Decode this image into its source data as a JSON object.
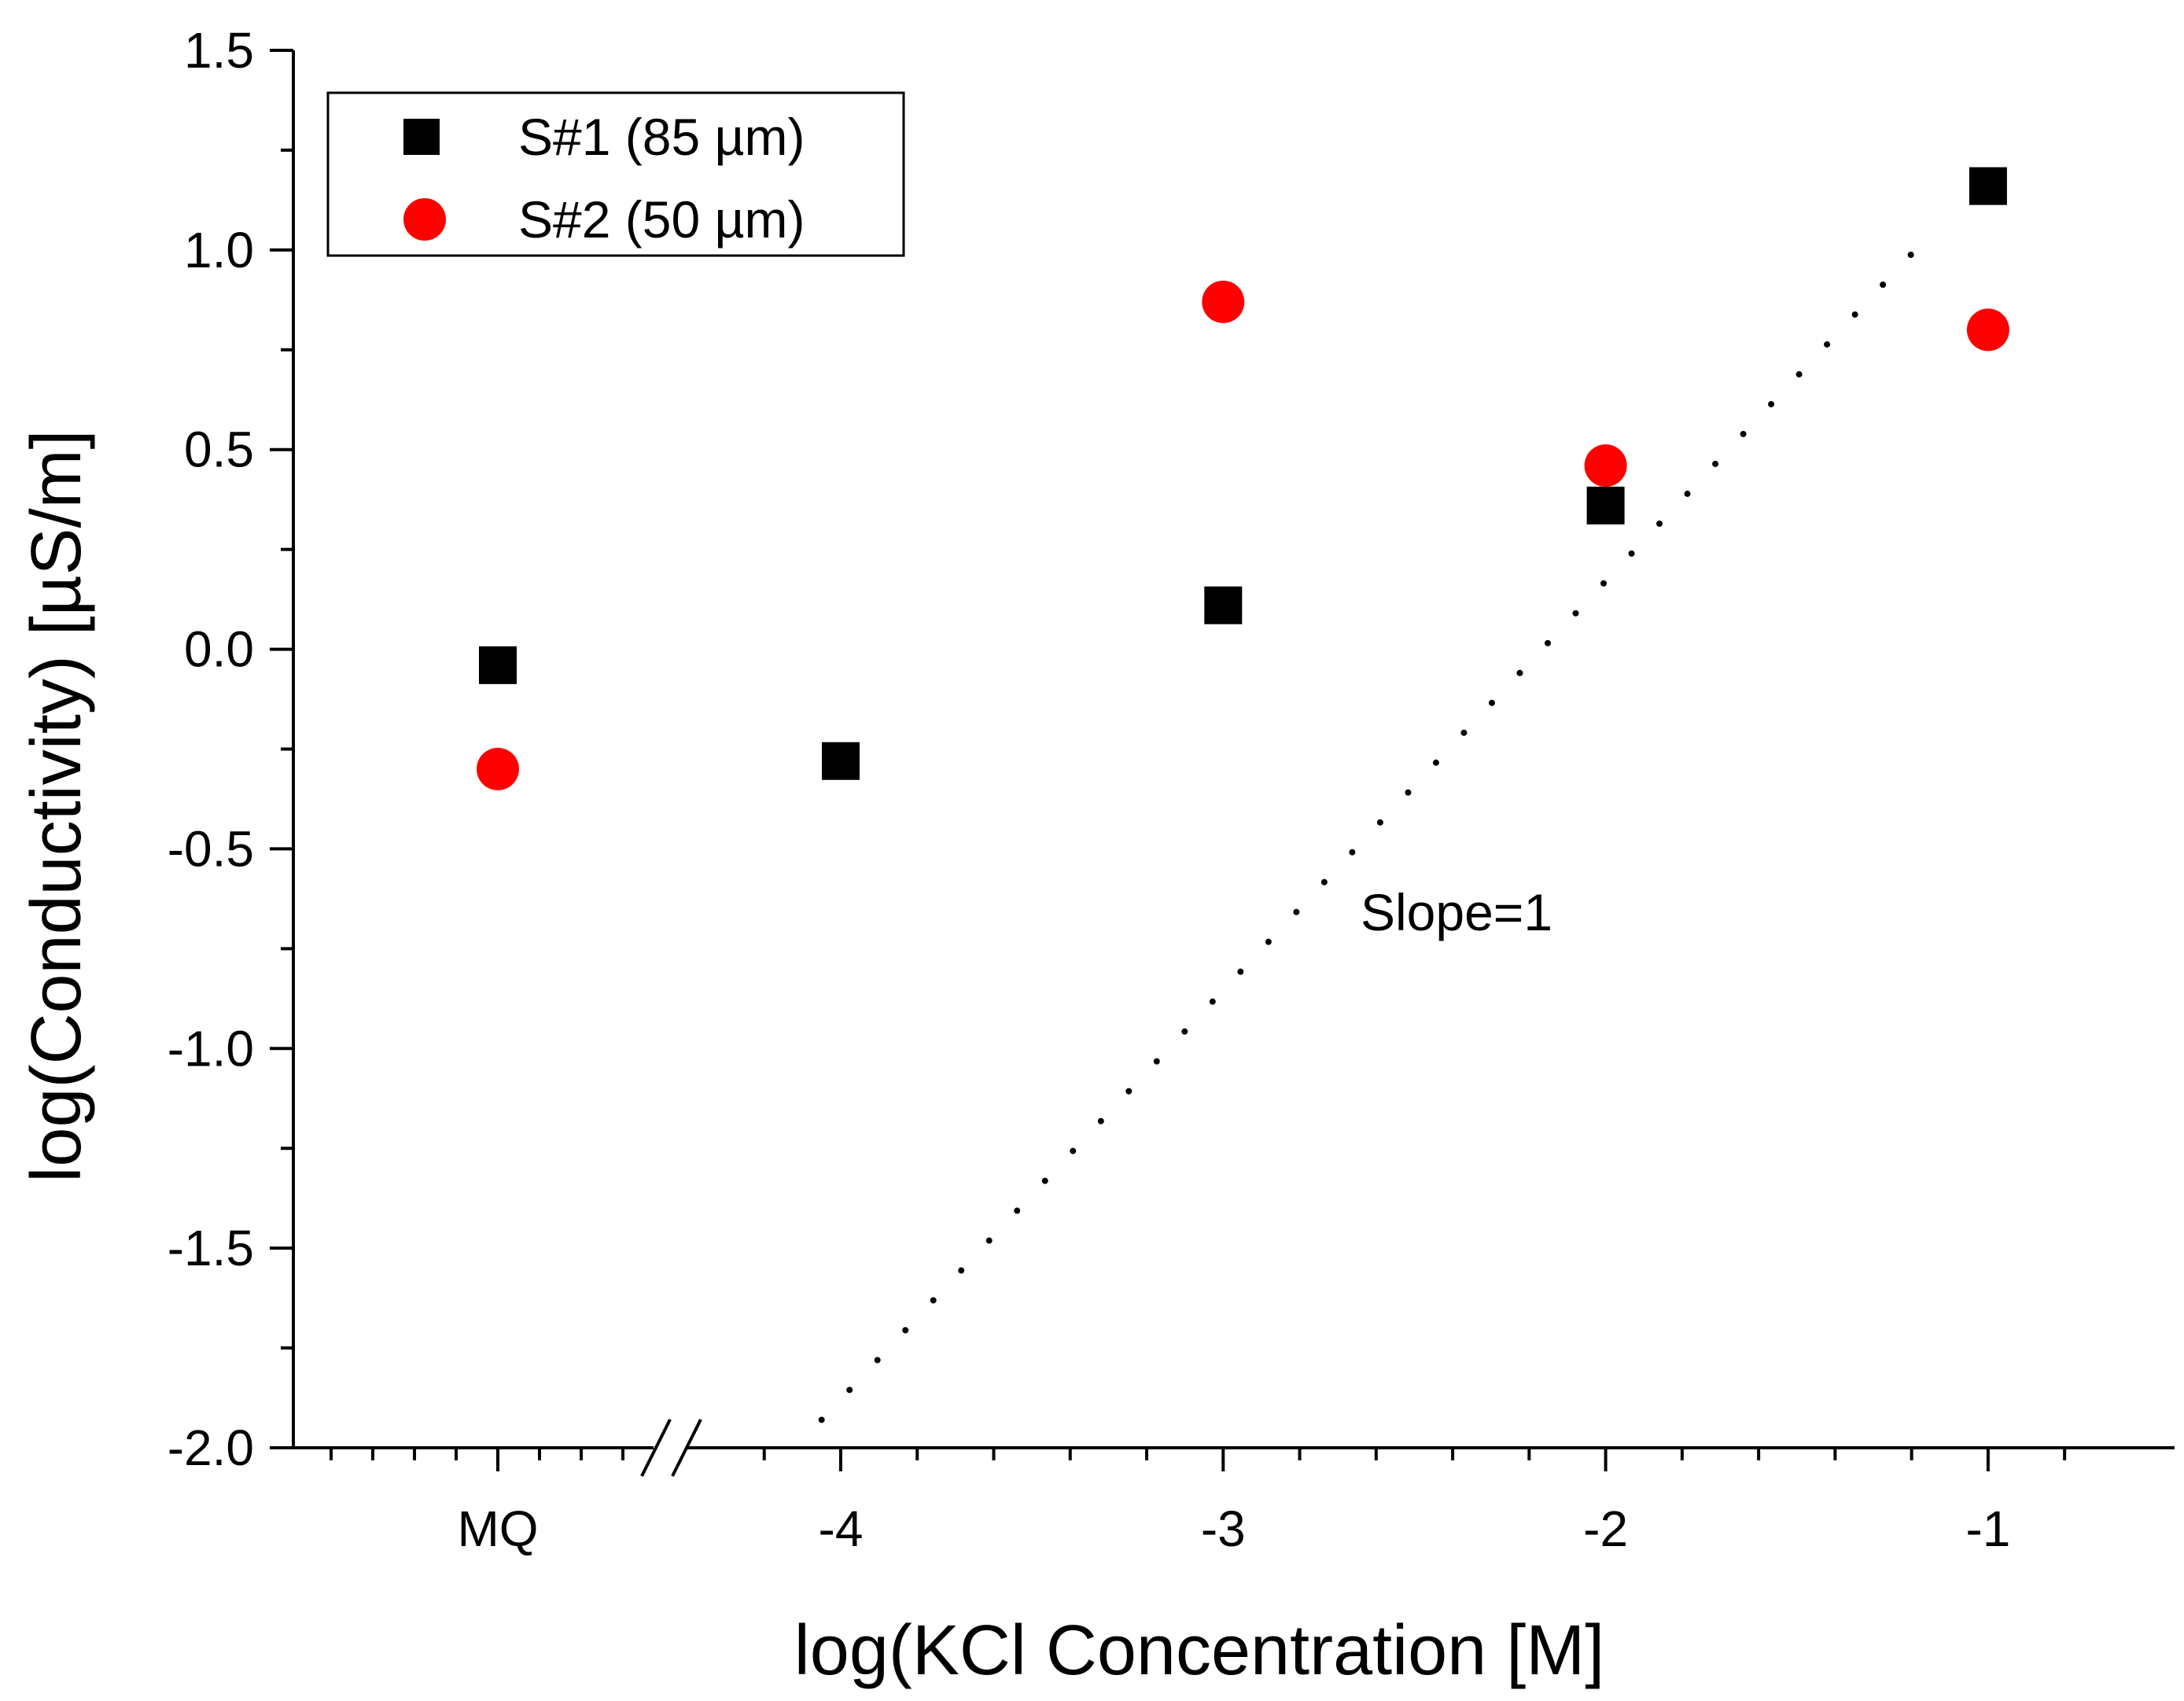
{
  "chart_data": {
    "type": "scatter",
    "title": "",
    "xlabel": "log(KCl Concentration [M]",
    "ylabel": "log(Conductivity) [µS/m]",
    "ylim": [
      -2.0,
      1.5
    ],
    "yticks": [
      "-2.0",
      "-1.5",
      "-1.0",
      "-0.5",
      "0.0",
      "0.5",
      "1.0",
      "1.5"
    ],
    "x_categories": [
      "MQ",
      "-4",
      "-3",
      "-2",
      "-1"
    ],
    "x_break": true,
    "legend_position": "top-left",
    "grid": false,
    "series": [
      {
        "name": "S#1 (85 µm)",
        "marker": "square",
        "color": "#000000",
        "points": [
          {
            "x": "MQ",
            "y": -0.04
          },
          {
            "x": "-4",
            "y": -0.28
          },
          {
            "x": "-3",
            "y": 0.11
          },
          {
            "x": "-2",
            "y": 0.36
          },
          {
            "x": "-1",
            "y": 1.16
          }
        ]
      },
      {
        "name": "S#2 (50 µm)",
        "marker": "circle",
        "color": "#ff0000",
        "points": [
          {
            "x": "MQ",
            "y": -0.3
          },
          {
            "x": "-3",
            "y": 0.87
          },
          {
            "x": "-2",
            "y": 0.46
          },
          {
            "x": "-1",
            "y": 0.8
          }
        ]
      }
    ],
    "reference_line": {
      "label": "Slope=1",
      "style": "dotted",
      "slope": 1,
      "x_start": -4.05,
      "y_start": -1.93,
      "x_end": -1.2,
      "y_end": 0.99
    }
  }
}
